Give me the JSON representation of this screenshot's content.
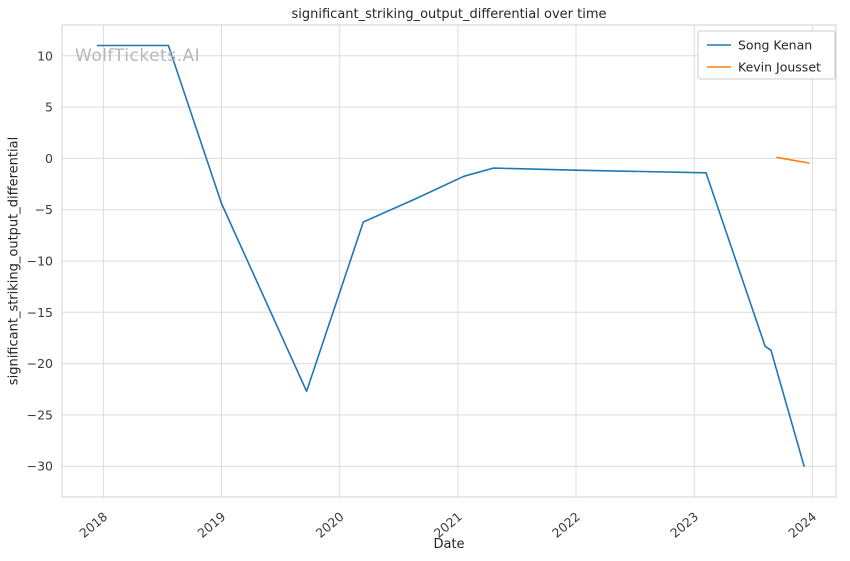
{
  "watermark": "WolfTickets.AI",
  "chart_data": {
    "type": "line",
    "title": "significant_striking_output_differential over time",
    "xlabel": "Date",
    "ylabel": "significant_striking_output_differential",
    "xlim": [
      2017.65,
      2024.2
    ],
    "ylim": [
      -33,
      13
    ],
    "grid": true,
    "legend_position": "upper right",
    "x_tick_values": [
      2018,
      2019,
      2020,
      2021,
      2022,
      2023,
      2024
    ],
    "x_tick_labels": [
      "2018",
      "2019",
      "2020",
      "2021",
      "2022",
      "2023",
      "2024"
    ],
    "y_tick_values": [
      10,
      5,
      0,
      -5,
      -10,
      -15,
      -20,
      -25,
      -30
    ],
    "y_tick_labels": [
      "10",
      "5",
      "0",
      "−5",
      "−10",
      "−15",
      "−20",
      "−25",
      "−30"
    ],
    "series": [
      {
        "name": "Song Kenan",
        "color": "#1f77b4",
        "x": [
          2017.95,
          2018.55,
          2019.0,
          2019.72,
          2020.2,
          2020.65,
          2021.05,
          2021.3,
          2022.0,
          2023.1,
          2023.6,
          2023.65,
          2023.93
        ],
        "y": [
          11,
          11,
          -4.4,
          -22.7,
          -6.2,
          -3.9,
          -1.75,
          -0.95,
          -1.15,
          -1.4,
          -18.3,
          -18.7,
          -30
        ]
      },
      {
        "name": "Kevin Jousset",
        "color": "#ff7f0e",
        "x": [
          2023.7,
          2023.97
        ],
        "y": [
          0.1,
          -0.45
        ]
      }
    ]
  }
}
